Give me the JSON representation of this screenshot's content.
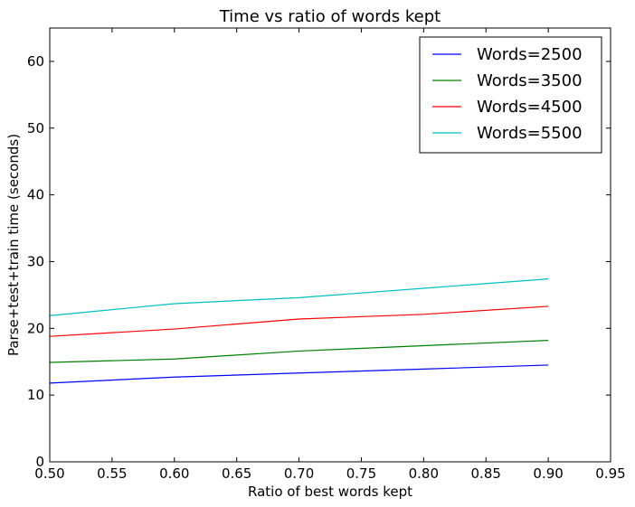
{
  "chart_data": {
    "type": "line",
    "title": "Time vs ratio of words kept",
    "xlabel": "Ratio of best words kept",
    "ylabel": "Parse+test+train time (seconds)",
    "xlim": [
      0.5,
      0.95
    ],
    "ylim": [
      0,
      65
    ],
    "xticks": [
      0.5,
      0.55,
      0.6,
      0.65,
      0.7,
      0.75,
      0.8,
      0.85,
      0.9,
      0.95
    ],
    "xtick_labels": [
      "0.50",
      "0.55",
      "0.60",
      "0.65",
      "0.70",
      "0.75",
      "0.80",
      "0.85",
      "0.90",
      "0.95"
    ],
    "yticks": [
      0,
      10,
      20,
      30,
      40,
      50,
      60
    ],
    "ytick_labels": [
      "0",
      "10",
      "20",
      "30",
      "40",
      "50",
      "60"
    ],
    "grid": false,
    "legend_position": "top-right",
    "x": [
      0.5,
      0.6,
      0.7,
      0.8,
      0.9
    ],
    "series": [
      {
        "name": "Words=2500",
        "color": "#0000ff",
        "values": [
          11.8,
          12.7,
          13.3,
          13.9,
          14.5
        ]
      },
      {
        "name": "Words=3500",
        "color": "#008000",
        "values": [
          14.9,
          15.4,
          16.6,
          17.4,
          18.2
        ]
      },
      {
        "name": "Words=4500",
        "color": "#ff0000",
        "values": [
          18.8,
          19.9,
          21.4,
          22.1,
          23.3
        ]
      },
      {
        "name": "Words=5500",
        "color": "#00bfbf",
        "values": [
          21.9,
          23.7,
          24.6,
          26.0,
          27.4
        ]
      }
    ]
  }
}
